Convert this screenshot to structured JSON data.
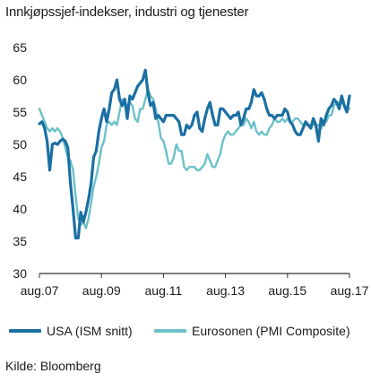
{
  "title": "Innkjøpssjef-indekser, industri og tjenester",
  "source": "Kilde: Bloomberg",
  "colors": {
    "usa": "#1a6fa3",
    "euro": "#6cc1c8",
    "grid": "#9a9a9a",
    "axis": "#333333"
  },
  "chart_data": {
    "type": "line",
    "title": "Innkjøpssjef-indekser, industri og tjenester",
    "xlabel": "",
    "ylabel": "",
    "ylim": [
      30,
      65
    ],
    "yticks": [
      "30",
      "35",
      "40",
      "45",
      "50",
      "55",
      "60",
      "65"
    ],
    "xlim": [
      "2007-08",
      "2017-08"
    ],
    "xticks": [
      "aug.07",
      "aug.09",
      "aug.11",
      "aug.13",
      "aug.15",
      "aug.17"
    ],
    "grid": false,
    "legend_position": "bottom",
    "series": [
      {
        "name": "USA (ISM snitt)",
        "color": "#1a6fa3",
        "values": [
          [
            "2007-08",
            53.2
          ],
          [
            "2007-09",
            53.5
          ],
          [
            "2007-10",
            52.5
          ],
          [
            "2007-11",
            50.5
          ],
          [
            "2007-12",
            46.0
          ],
          [
            "2008-01",
            50.0
          ],
          [
            "2008-02",
            50.2
          ],
          [
            "2008-03",
            50.0
          ],
          [
            "2008-04",
            50.5
          ],
          [
            "2008-05",
            50.8
          ],
          [
            "2008-06",
            50.5
          ],
          [
            "2008-07",
            49.5
          ],
          [
            "2008-08",
            44.0
          ],
          [
            "2008-09",
            40.0
          ],
          [
            "2008-10",
            35.5
          ],
          [
            "2008-11",
            35.5
          ],
          [
            "2008-12",
            39.5
          ],
          [
            "2009-01",
            38.0
          ],
          [
            "2009-02",
            39.5
          ],
          [
            "2009-03",
            41.5
          ],
          [
            "2009-04",
            44.0
          ],
          [
            "2009-05",
            48.0
          ],
          [
            "2009-06",
            49.0
          ],
          [
            "2009-07",
            52.0
          ],
          [
            "2009-08",
            54.0
          ],
          [
            "2009-09",
            55.5
          ],
          [
            "2009-10",
            53.5
          ],
          [
            "2009-11",
            55.5
          ],
          [
            "2009-12",
            58.0
          ],
          [
            "2010-01",
            58.5
          ],
          [
            "2010-02",
            60.0
          ],
          [
            "2010-03",
            57.0
          ],
          [
            "2010-04",
            56.0
          ],
          [
            "2010-05",
            57.0
          ],
          [
            "2010-06",
            54.0
          ],
          [
            "2010-07",
            57.5
          ],
          [
            "2010-08",
            57.0
          ],
          [
            "2010-09",
            58.0
          ],
          [
            "2010-10",
            59.0
          ],
          [
            "2010-11",
            59.5
          ],
          [
            "2010-12",
            60.0
          ],
          [
            "2011-01",
            61.5
          ],
          [
            "2011-02",
            58.0
          ],
          [
            "2011-03",
            56.0
          ],
          [
            "2011-04",
            56.5
          ],
          [
            "2011-05",
            54.0
          ],
          [
            "2011-06",
            54.5
          ],
          [
            "2011-07",
            54.0
          ],
          [
            "2011-08",
            53.5
          ],
          [
            "2011-09",
            54.5
          ],
          [
            "2011-10",
            54.5
          ],
          [
            "2011-11",
            54.5
          ],
          [
            "2011-12",
            54.5
          ],
          [
            "2012-01",
            54.0
          ],
          [
            "2012-02",
            53.5
          ],
          [
            "2012-03",
            51.5
          ],
          [
            "2012-04",
            51.5
          ],
          [
            "2012-05",
            53.0
          ],
          [
            "2012-06",
            52.5
          ],
          [
            "2012-07",
            53.0
          ],
          [
            "2012-08",
            54.5
          ],
          [
            "2012-09",
            55.0
          ],
          [
            "2012-10",
            52.5
          ],
          [
            "2012-11",
            52.0
          ],
          [
            "2012-12",
            54.0
          ],
          [
            "2013-01",
            55.5
          ],
          [
            "2013-02",
            56.5
          ],
          [
            "2013-03",
            54.5
          ],
          [
            "2013-04",
            53.0
          ],
          [
            "2013-05",
            53.0
          ],
          [
            "2013-06",
            55.5
          ],
          [
            "2013-07",
            55.5
          ],
          [
            "2013-08",
            55.0
          ],
          [
            "2013-09",
            54.5
          ],
          [
            "2013-10",
            54.0
          ],
          [
            "2013-11",
            54.5
          ],
          [
            "2013-12",
            54.5
          ],
          [
            "2014-01",
            55.0
          ],
          [
            "2014-02",
            53.0
          ],
          [
            "2014-03",
            54.0
          ],
          [
            "2014-04",
            55.5
          ],
          [
            "2014-05",
            55.5
          ],
          [
            "2014-06",
            56.5
          ],
          [
            "2014-07",
            58.5
          ],
          [
            "2014-08",
            57.5
          ],
          [
            "2014-09",
            57.5
          ],
          [
            "2014-10",
            58.0
          ],
          [
            "2014-11",
            57.0
          ],
          [
            "2014-12",
            55.5
          ],
          [
            "2015-01",
            54.5
          ],
          [
            "2015-02",
            54.5
          ],
          [
            "2015-03",
            54.0
          ],
          [
            "2015-04",
            54.5
          ],
          [
            "2015-05",
            54.5
          ],
          [
            "2015-06",
            54.5
          ],
          [
            "2015-07",
            55.5
          ],
          [
            "2015-08",
            55.0
          ],
          [
            "2015-09",
            53.5
          ],
          [
            "2015-10",
            53.0
          ],
          [
            "2015-11",
            52.0
          ],
          [
            "2015-12",
            51.5
          ],
          [
            "2016-01",
            51.5
          ],
          [
            "2016-02",
            52.5
          ],
          [
            "2016-03",
            53.5
          ],
          [
            "2016-04",
            53.0
          ],
          [
            "2016-05",
            52.5
          ],
          [
            "2016-06",
            54.0
          ],
          [
            "2016-07",
            53.0
          ],
          [
            "2016-08",
            50.5
          ],
          [
            "2016-09",
            54.0
          ],
          [
            "2016-10",
            53.0
          ],
          [
            "2016-11",
            54.5
          ],
          [
            "2016-12",
            55.5
          ],
          [
            "2017-01",
            56.0
          ],
          [
            "2017-02",
            57.0
          ],
          [
            "2017-03",
            56.5
          ],
          [
            "2017-04",
            55.5
          ],
          [
            "2017-05",
            57.5
          ],
          [
            "2017-06",
            56.0
          ],
          [
            "2017-07",
            55.0
          ],
          [
            "2017-08",
            57.5
          ]
        ]
      },
      {
        "name": "Eurosonen (PMI Composite)",
        "color": "#6cc1c8",
        "values": [
          [
            "2007-08",
            55.5
          ],
          [
            "2007-09",
            54.5
          ],
          [
            "2007-10",
            53.5
          ],
          [
            "2007-11",
            52.5
          ],
          [
            "2007-12",
            52.0
          ],
          [
            "2008-01",
            52.5
          ],
          [
            "2008-02",
            52.0
          ],
          [
            "2008-03",
            52.5
          ],
          [
            "2008-04",
            52.0
          ],
          [
            "2008-05",
            51.0
          ],
          [
            "2008-06",
            49.5
          ],
          [
            "2008-07",
            48.0
          ],
          [
            "2008-08",
            47.5
          ],
          [
            "2008-09",
            46.0
          ],
          [
            "2008-10",
            42.0
          ],
          [
            "2008-11",
            38.5
          ],
          [
            "2008-12",
            37.5
          ],
          [
            "2009-01",
            38.0
          ],
          [
            "2009-02",
            37.0
          ],
          [
            "2009-03",
            38.5
          ],
          [
            "2009-04",
            41.0
          ],
          [
            "2009-05",
            43.5
          ],
          [
            "2009-06",
            45.0
          ],
          [
            "2009-07",
            47.0
          ],
          [
            "2009-08",
            49.5
          ],
          [
            "2009-09",
            50.5
          ],
          [
            "2009-10",
            53.0
          ],
          [
            "2009-11",
            53.5
          ],
          [
            "2009-12",
            53.0
          ],
          [
            "2010-01",
            53.5
          ],
          [
            "2010-02",
            53.0
          ],
          [
            "2010-03",
            55.0
          ],
          [
            "2010-04",
            57.0
          ],
          [
            "2010-05",
            56.0
          ],
          [
            "2010-06",
            56.0
          ],
          [
            "2010-07",
            56.5
          ],
          [
            "2010-08",
            56.0
          ],
          [
            "2010-09",
            54.0
          ],
          [
            "2010-10",
            53.5
          ],
          [
            "2010-11",
            55.5
          ],
          [
            "2010-12",
            55.5
          ],
          [
            "2011-01",
            57.0
          ],
          [
            "2011-02",
            58.5
          ],
          [
            "2011-03",
            57.5
          ],
          [
            "2011-04",
            57.0
          ],
          [
            "2011-05",
            55.5
          ],
          [
            "2011-06",
            53.5
          ],
          [
            "2011-07",
            51.0
          ],
          [
            "2011-08",
            50.5
          ],
          [
            "2011-09",
            49.0
          ],
          [
            "2011-10",
            47.0
          ],
          [
            "2011-11",
            47.0
          ],
          [
            "2011-12",
            48.0
          ],
          [
            "2012-01",
            50.0
          ],
          [
            "2012-02",
            49.0
          ],
          [
            "2012-03",
            49.0
          ],
          [
            "2012-04",
            46.5
          ],
          [
            "2012-05",
            46.0
          ],
          [
            "2012-06",
            46.5
          ],
          [
            "2012-07",
            46.5
          ],
          [
            "2012-08",
            46.5
          ],
          [
            "2012-09",
            46.0
          ],
          [
            "2012-10",
            46.0
          ],
          [
            "2012-11",
            46.5
          ],
          [
            "2012-12",
            47.0
          ],
          [
            "2013-01",
            48.5
          ],
          [
            "2013-02",
            47.5
          ],
          [
            "2013-03",
            46.5
          ],
          [
            "2013-04",
            46.5
          ],
          [
            "2013-05",
            47.5
          ],
          [
            "2013-06",
            48.5
          ],
          [
            "2013-07",
            50.5
          ],
          [
            "2013-08",
            51.5
          ],
          [
            "2013-09",
            52.0
          ],
          [
            "2013-10",
            51.5
          ],
          [
            "2013-11",
            51.5
          ],
          [
            "2013-12",
            52.0
          ],
          [
            "2014-01",
            52.5
          ],
          [
            "2014-02",
            53.0
          ],
          [
            "2014-03",
            53.0
          ],
          [
            "2014-04",
            54.0
          ],
          [
            "2014-05",
            53.5
          ],
          [
            "2014-06",
            52.5
          ],
          [
            "2014-07",
            53.5
          ],
          [
            "2014-08",
            52.0
          ],
          [
            "2014-09",
            51.5
          ],
          [
            "2014-10",
            52.0
          ],
          [
            "2014-11",
            51.5
          ],
          [
            "2014-12",
            51.5
          ],
          [
            "2015-01",
            52.5
          ],
          [
            "2015-02",
            53.0
          ],
          [
            "2015-03",
            54.0
          ],
          [
            "2015-04",
            53.5
          ],
          [
            "2015-05",
            53.5
          ],
          [
            "2015-06",
            54.0
          ],
          [
            "2015-07",
            53.5
          ],
          [
            "2015-08",
            54.0
          ],
          [
            "2015-09",
            53.5
          ],
          [
            "2015-10",
            53.5
          ],
          [
            "2015-11",
            54.0
          ],
          [
            "2015-12",
            54.0
          ],
          [
            "2016-01",
            53.5
          ],
          [
            "2016-02",
            53.0
          ],
          [
            "2016-03",
            53.0
          ],
          [
            "2016-04",
            53.0
          ],
          [
            "2016-05",
            53.0
          ],
          [
            "2016-06",
            53.0
          ],
          [
            "2016-07",
            53.0
          ],
          [
            "2016-08",
            53.0
          ],
          [
            "2016-09",
            52.5
          ],
          [
            "2016-10",
            53.5
          ],
          [
            "2016-11",
            53.5
          ],
          [
            "2016-12",
            54.5
          ],
          [
            "2017-01",
            54.5
          ],
          [
            "2017-02",
            56.0
          ],
          [
            "2017-03",
            56.5
          ],
          [
            "2017-04",
            56.5
          ],
          [
            "2017-05",
            56.5
          ],
          [
            "2017-06",
            56.0
          ],
          [
            "2017-07",
            55.5
          ],
          [
            "2017-08",
            55.5
          ]
        ]
      }
    ]
  }
}
